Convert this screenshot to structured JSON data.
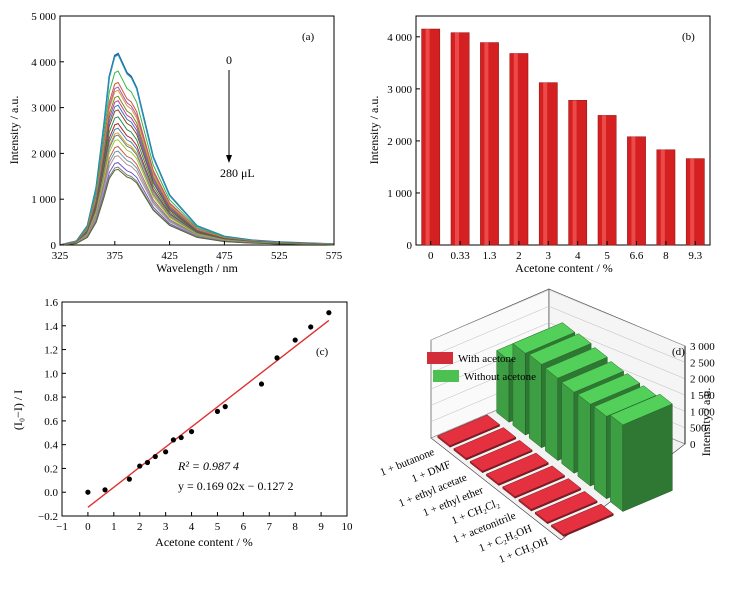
{
  "panels": {
    "a": {
      "label": "(a)",
      "arrow_top": "0",
      "arrow_bottom": "280 μL",
      "chart_data": {
        "type": "line",
        "xlabel": "Wavelength / nm",
        "ylabel": "Intensity / a.u.",
        "xlim": [
          325,
          575
        ],
        "ylim": [
          0,
          5000
        ],
        "x_ticks": [
          325,
          375,
          425,
          475,
          525,
          575
        ],
        "y_ticks": [
          0,
          1000,
          2000,
          3000,
          4000,
          5000
        ],
        "x_tick_labels": [
          "325",
          "375",
          "425",
          "475",
          "525",
          "575"
        ],
        "y_tick_labels": [
          "0",
          "1 000",
          "2 000",
          "3 000",
          "4 000",
          "5 000"
        ],
        "curve_x": [
          325,
          340,
          350,
          358,
          365,
          370,
          375,
          378,
          382,
          386,
          390,
          395,
          400,
          410,
          425,
          450,
          475,
          500,
          525,
          550,
          575
        ],
        "curve_shape": [
          0.0,
          0.02,
          0.1,
          0.3,
          0.62,
          0.88,
          0.99,
          1.0,
          0.95,
          0.9,
          0.88,
          0.82,
          0.7,
          0.46,
          0.26,
          0.1,
          0.045,
          0.025,
          0.015,
          0.01,
          0.005
        ],
        "peak_intensities": [
          4180,
          4150,
          3800,
          3550,
          3450,
          3380,
          3250,
          3150,
          3050,
          2950,
          2800,
          2650,
          2550,
          2450,
          2400,
          2300,
          2150,
          2050,
          1950,
          1800,
          1700,
          1650
        ],
        "series_colors": [
          "#2a5caa",
          "#1a9fb0",
          "#39b54a",
          "#d4553b",
          "#a05cb4",
          "#e8903a",
          "#6b8e23",
          "#c83d8f",
          "#3b78c8",
          "#8b4513",
          "#2e8b57",
          "#b22222",
          "#4682b4",
          "#daa520",
          "#708090",
          "#9acd32",
          "#cd5c5c",
          "#5f9ea0",
          "#bc8f8f",
          "#6a5acd",
          "#808080",
          "#556b2f"
        ]
      }
    },
    "b": {
      "label": "(b)",
      "chart_data": {
        "type": "bar",
        "xlabel": "Acetone content / %",
        "ylabel": "Intensity / a.u.",
        "categories": [
          "0",
          "0.33",
          "1.3",
          "2",
          "3",
          "4",
          "5",
          "6.6",
          "8",
          "9.3"
        ],
        "values": [
          4150,
          4080,
          3890,
          3680,
          3120,
          2780,
          2490,
          2080,
          1830,
          1660
        ],
        "ylim": [
          0,
          4400
        ],
        "y_ticks": [
          0,
          1000,
          2000,
          3000,
          4000
        ],
        "y_tick_labels": [
          "0",
          "1 000",
          "2 000",
          "3 000",
          "4 000"
        ],
        "bar_color": "#d42020",
        "bar_highlight": "#ff6b6b"
      }
    },
    "c": {
      "label": "(c)",
      "r2_label": "R² = 0.987 4",
      "equation": "y = 0.169 02x − 0.127 2",
      "chart_data": {
        "type": "scatter",
        "xlabel": "Acetone content / %",
        "ylabel": "(I₀−I) / I",
        "xlim": [
          -1,
          10
        ],
        "ylim": [
          -0.2,
          1.6
        ],
        "x_ticks": [
          -1,
          0,
          1,
          2,
          3,
          4,
          5,
          6,
          7,
          8,
          9,
          10
        ],
        "y_ticks": [
          -0.2,
          0.0,
          0.2,
          0.4,
          0.6,
          0.8,
          1.0,
          1.2,
          1.4,
          1.6
        ],
        "x_tick_labels": [
          "−1",
          "0",
          "1",
          "2",
          "3",
          "4",
          "5",
          "6",
          "7",
          "8",
          "9",
          "10"
        ],
        "y_tick_labels": [
          "−0.2",
          "0.0",
          "0.2",
          "0.4",
          "0.6",
          "0.8",
          "1.0",
          "1.2",
          "1.4",
          "1.6"
        ],
        "x": [
          0,
          0.66,
          1.6,
          2.0,
          2.3,
          2.6,
          3.0,
          3.3,
          3.6,
          4.0,
          5.0,
          5.3,
          6.7,
          7.3,
          8.0,
          8.6,
          9.3
        ],
        "y": [
          0.0,
          0.02,
          0.11,
          0.22,
          0.25,
          0.3,
          0.34,
          0.44,
          0.46,
          0.51,
          0.68,
          0.72,
          0.91,
          1.13,
          1.28,
          1.39,
          1.51
        ],
        "fit": {
          "slope": 0.16902,
          "intercept": -0.1272,
          "x_range": [
            0,
            9.3
          ],
          "color": "#e03030"
        }
      }
    },
    "d": {
      "label": "(d)",
      "chart_data": {
        "type": "bar",
        "categories": [
          "1 + butanone",
          "1 + DMF",
          "1 + ethyl acetate",
          "1 + ethyl ether",
          "1 + CH₂Cl₂",
          "1 + acetonitrile",
          "1 + C₂H₅OH",
          "1 + CH₃OH"
        ],
        "series": [
          {
            "name": "With acetone",
            "color": "#d42d3a",
            "values": [
              50,
              50,
              50,
              50,
              50,
              50,
              50,
              50
            ]
          },
          {
            "name": "Without acetone",
            "color": "#4cc152",
            "values": [
              1900,
              2500,
              2550,
              2520,
              2480,
              2500,
              2520,
              2650
            ]
          }
        ],
        "zlabel": "Intensity / a.u.",
        "zlim": [
          0,
          3000
        ],
        "z_ticks": [
          0,
          500,
          1000,
          1500,
          2000,
          2500,
          3000
        ],
        "z_tick_labels": [
          "0",
          "500",
          "1 000",
          "1 500",
          "2 000",
          "2 500",
          "3 000"
        ]
      }
    }
  }
}
